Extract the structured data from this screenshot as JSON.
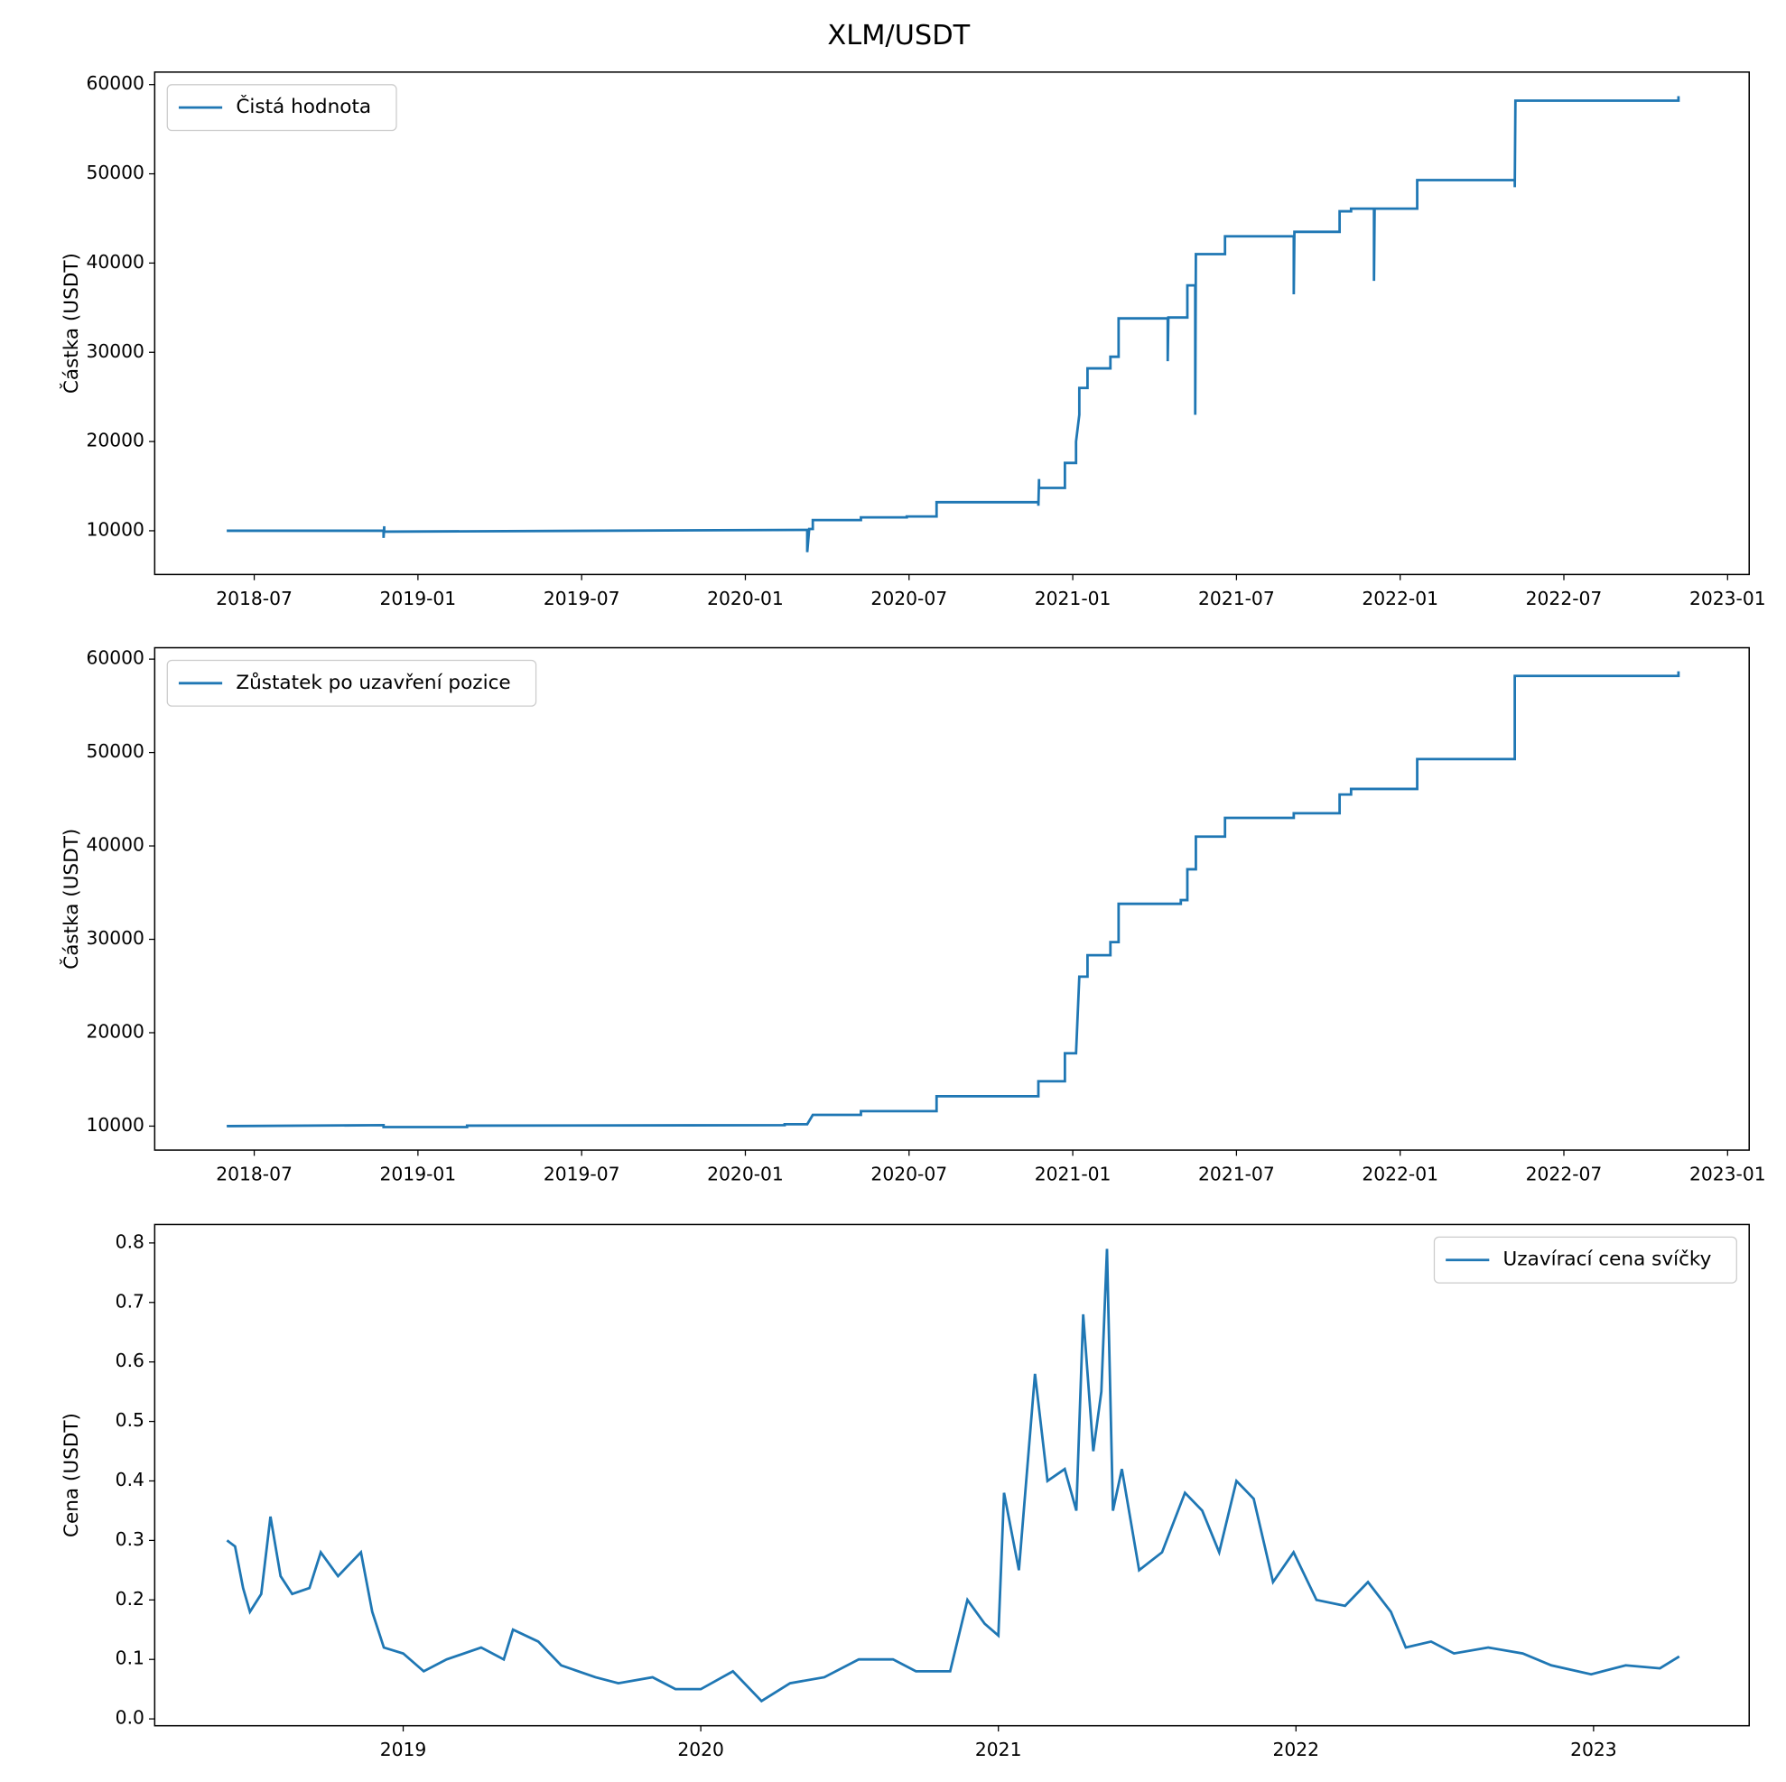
{
  "title": "XLM/USDT",
  "chart_data": [
    {
      "type": "line",
      "ylabel": "Částka (USDT)",
      "legend": "upper left",
      "grid": false,
      "xlim": [
        2018.196,
        2023.066
      ],
      "ylim": [
        5100,
        61400
      ],
      "xticks": [
        {
          "value": 2018.5,
          "label": "2018-07"
        },
        {
          "value": 2019.0,
          "label": "2019-01"
        },
        {
          "value": 2019.5,
          "label": "2019-07"
        },
        {
          "value": 2020.0,
          "label": "2020-01"
        },
        {
          "value": 2020.5,
          "label": "2020-07"
        },
        {
          "value": 2021.0,
          "label": "2021-01"
        },
        {
          "value": 2021.5,
          "label": "2021-07"
        },
        {
          "value": 2022.0,
          "label": "2022-01"
        },
        {
          "value": 2022.5,
          "label": "2022-07"
        },
        {
          "value": 2023.0,
          "label": "2023-01"
        }
      ],
      "yticks": [
        10000,
        20000,
        30000,
        40000,
        50000,
        60000
      ],
      "series": [
        {
          "name": "Čistá hodnota",
          "color": "#1f77b4",
          "x": [
            2018.416,
            2018.895,
            2018.895,
            2018.897,
            2018.897,
            2020.189,
            2020.189,
            2020.195,
            2020.206,
            2020.206,
            2020.353,
            2020.353,
            2020.493,
            2020.493,
            2020.584,
            2020.584,
            2020.895,
            2020.895,
            2020.897,
            2020.897,
            2020.976,
            2020.976,
            2021.01,
            2021.01,
            2021.02,
            2021.02,
            2021.045,
            2021.045,
            2021.115,
            2021.115,
            2021.14,
            2021.14,
            2021.29,
            2021.29,
            2021.292,
            2021.35,
            2021.35,
            2021.374,
            2021.374,
            2021.376,
            2021.465,
            2021.465,
            2021.675,
            2021.675,
            2021.677,
            2021.815,
            2021.815,
            2021.85,
            2021.85,
            2021.92,
            2021.92,
            2021.922,
            2022.052,
            2022.052,
            2022.35,
            2022.35,
            2022.352,
            2022.85,
            2022.85
          ],
          "values": [
            10000,
            10000,
            9200,
            10500,
            9900,
            10100,
            7600,
            10200,
            10200,
            11200,
            11200,
            11500,
            11500,
            11600,
            11600,
            13200,
            13200,
            12800,
            15800,
            14800,
            14800,
            17600,
            17600,
            20000,
            23000,
            26000,
            26000,
            28200,
            28200,
            29500,
            29500,
            33800,
            33800,
            29000,
            33900,
            33900,
            37500,
            37500,
            23000,
            41000,
            41000,
            43000,
            43000,
            36500,
            43500,
            43500,
            45800,
            45800,
            46100,
            46100,
            38000,
            46100,
            46100,
            49300,
            49300,
            48500,
            58200,
            58200,
            58700
          ]
        }
      ]
    },
    {
      "type": "line",
      "ylabel": "Částka (USDT)",
      "legend": "upper left",
      "grid": false,
      "xlim": [
        2018.196,
        2023.066
      ],
      "ylim": [
        7430,
        61220
      ],
      "xticks": [
        {
          "value": 2018.5,
          "label": "2018-07"
        },
        {
          "value": 2019.0,
          "label": "2019-01"
        },
        {
          "value": 2019.5,
          "label": "2019-07"
        },
        {
          "value": 2020.0,
          "label": "2020-01"
        },
        {
          "value": 2020.5,
          "label": "2020-07"
        },
        {
          "value": 2021.0,
          "label": "2021-01"
        },
        {
          "value": 2021.5,
          "label": "2021-07"
        },
        {
          "value": 2022.0,
          "label": "2022-01"
        },
        {
          "value": 2022.5,
          "label": "2022-07"
        },
        {
          "value": 2023.0,
          "label": "2023-01"
        }
      ],
      "yticks": [
        10000,
        20000,
        30000,
        40000,
        50000,
        60000
      ],
      "series": [
        {
          "name": "Zůstatek po uzavření pozice",
          "color": "#1f77b4",
          "x": [
            2018.416,
            2018.895,
            2018.895,
            2019.15,
            2019.15,
            2020.12,
            2020.12,
            2020.189,
            2020.206,
            2020.353,
            2020.353,
            2020.584,
            2020.584,
            2020.895,
            2020.895,
            2020.976,
            2020.976,
            2021.01,
            2021.02,
            2021.045,
            2021.045,
            2021.115,
            2021.115,
            2021.14,
            2021.14,
            2021.33,
            2021.33,
            2021.35,
            2021.35,
            2021.376,
            2021.376,
            2021.465,
            2021.465,
            2021.675,
            2021.675,
            2021.815,
            2021.815,
            2021.85,
            2021.85,
            2022.052,
            2022.052,
            2022.35,
            2022.35,
            2022.85,
            2022.85
          ],
          "values": [
            10000,
            10100,
            9900,
            9900,
            10050,
            10100,
            10200,
            10200,
            11200,
            11200,
            11600,
            11600,
            13200,
            13200,
            14800,
            14800,
            17800,
            17800,
            26000,
            26000,
            28300,
            28300,
            29700,
            29700,
            33800,
            33800,
            34200,
            34200,
            37500,
            37500,
            41000,
            41000,
            43000,
            43000,
            43500,
            43500,
            45500,
            45500,
            46100,
            46100,
            49300,
            49300,
            58200,
            58200,
            58700
          ]
        }
      ]
    },
    {
      "type": "line",
      "ylabel": "Cena (USDT)",
      "legend": "upper right",
      "grid": false,
      "xlim": [
        2018.165,
        2023.523
      ],
      "ylim": [
        -0.0115,
        0.831
      ],
      "xticks": [
        2019,
        2020,
        2021,
        2022,
        2023
      ],
      "yticks": [
        {
          "value": 0,
          "label": "0.0"
        },
        0.1,
        0.2,
        0.3,
        0.4,
        0.5,
        0.6,
        0.7,
        0.8
      ],
      "series": [
        {
          "name": "Uzavírací cena svíčky",
          "color": "#1f77b4",
          "x": [
            2018.408,
            2018.435,
            2018.462,
            2018.485,
            2018.523,
            2018.554,
            2018.588,
            2018.627,
            2018.685,
            2018.723,
            2018.781,
            2018.858,
            2018.896,
            2018.935,
            2019.0,
            2019.069,
            2019.146,
            2019.262,
            2019.338,
            2019.369,
            2019.454,
            2019.531,
            2019.646,
            2019.723,
            2019.838,
            2019.915,
            2020.0,
            2020.108,
            2020.204,
            2020.3,
            2020.415,
            2020.531,
            2020.646,
            2020.723,
            2020.838,
            2020.896,
            2020.954,
            2021.0,
            2021.019,
            2021.069,
            2021.123,
            2021.165,
            2021.223,
            2021.262,
            2021.285,
            2021.319,
            2021.346,
            2021.365,
            2021.385,
            2021.415,
            2021.473,
            2021.55,
            2021.627,
            2021.685,
            2021.742,
            2021.8,
            2021.858,
            2021.923,
            2021.992,
            2022.069,
            2022.165,
            2022.242,
            2022.319,
            2022.369,
            2022.454,
            2022.531,
            2022.646,
            2022.762,
            2022.858,
            2022.992,
            2023.108,
            2023.223,
            2023.288
          ],
          "values": [
            0.3,
            0.29,
            0.22,
            0.18,
            0.21,
            0.34,
            0.24,
            0.21,
            0.22,
            0.28,
            0.24,
            0.28,
            0.18,
            0.12,
            0.11,
            0.08,
            0.1,
            0.12,
            0.1,
            0.15,
            0.13,
            0.09,
            0.07,
            0.06,
            0.07,
            0.05,
            0.05,
            0.08,
            0.03,
            0.06,
            0.07,
            0.1,
            0.1,
            0.08,
            0.08,
            0.2,
            0.16,
            0.14,
            0.38,
            0.25,
            0.58,
            0.4,
            0.42,
            0.35,
            0.68,
            0.45,
            0.55,
            0.79,
            0.35,
            0.42,
            0.25,
            0.28,
            0.38,
            0.35,
            0.28,
            0.4,
            0.37,
            0.23,
            0.28,
            0.2,
            0.19,
            0.23,
            0.18,
            0.12,
            0.13,
            0.11,
            0.12,
            0.11,
            0.09,
            0.075,
            0.09,
            0.085,
            0.105
          ]
        }
      ]
    }
  ]
}
